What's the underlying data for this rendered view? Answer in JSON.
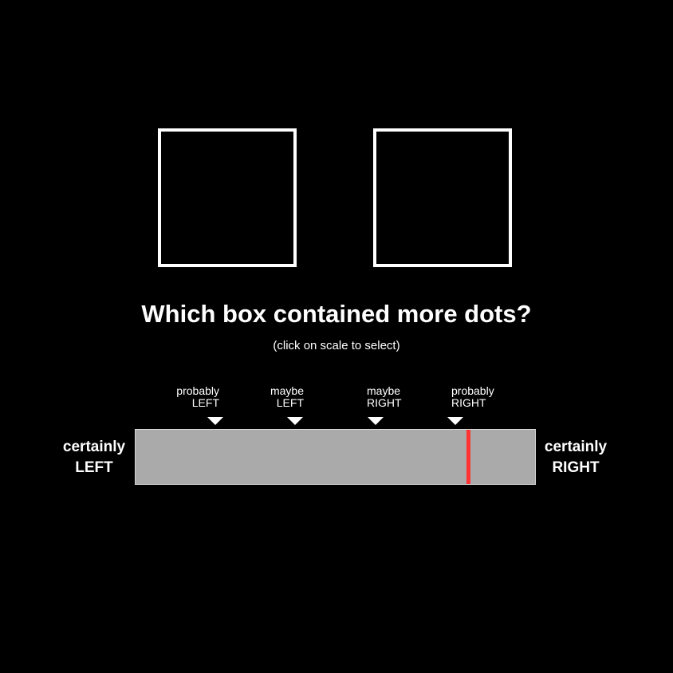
{
  "question": "Which box contained more dots?",
  "instruction": "(click on scale to select)",
  "scale": {
    "end_left": {
      "line1": "certainly",
      "line2": "LEFT"
    },
    "end_right": {
      "line1": "certainly",
      "line2": "RIGHT"
    },
    "ticks": [
      {
        "line1": "probably",
        "line2": "LEFT"
      },
      {
        "line1": "maybe",
        "line2": "LEFT"
      },
      {
        "line1": "maybe",
        "line2": "RIGHT"
      },
      {
        "line1": "probably",
        "line2": "RIGHT"
      }
    ],
    "selected_fraction": 0.833,
    "bar_color": "#aaaaaa",
    "marker_color": "#ff3333"
  },
  "colors": {
    "background": "#000000",
    "foreground": "#ffffff"
  }
}
